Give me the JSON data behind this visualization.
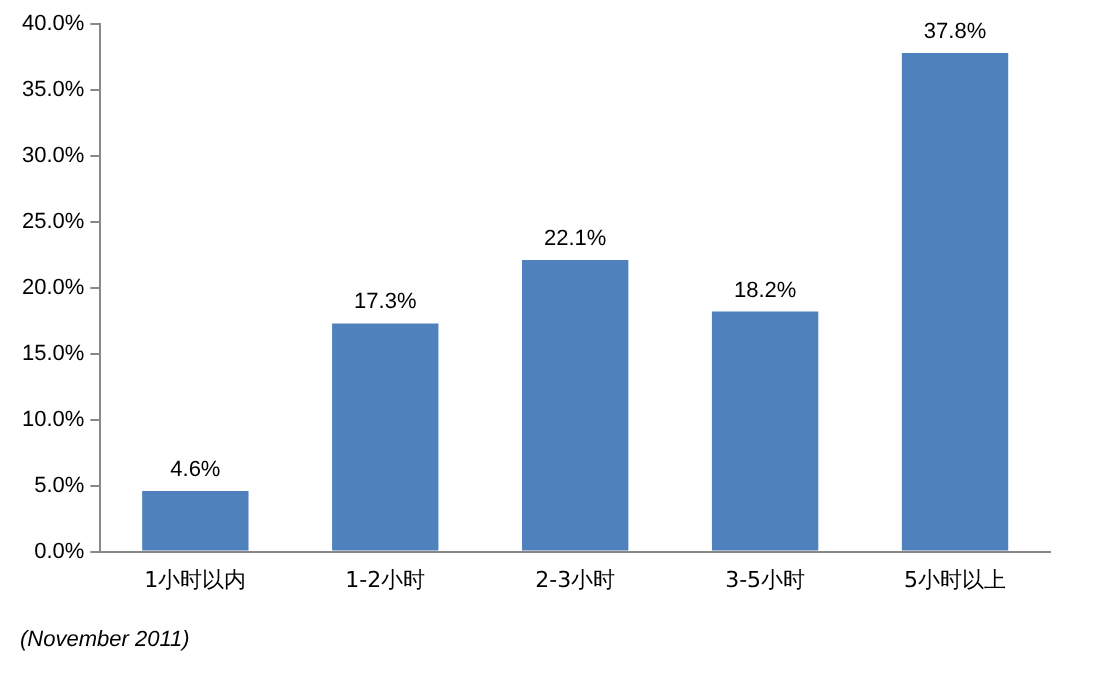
{
  "chart_data": {
    "type": "bar",
    "categories": [
      "1小时以内",
      "1-2小时",
      "2-3小时",
      "3-5小时",
      "5小时以上"
    ],
    "values": [
      4.6,
      17.3,
      22.1,
      18.2,
      37.8
    ],
    "value_labels": [
      "4.6%",
      "17.3%",
      "22.1%",
      "18.2%",
      "37.8%"
    ],
    "color": "#4f81bd",
    "ylim": [
      0,
      40
    ],
    "yticks": [
      {
        "value": 0,
        "label": "0.0%"
      },
      {
        "value": 5,
        "label": "5.0%"
      },
      {
        "value": 10,
        "label": "10.0%"
      },
      {
        "value": 15,
        "label": "15.0%"
      },
      {
        "value": 20,
        "label": "20.0%"
      },
      {
        "value": 25,
        "label": "25.0%"
      },
      {
        "value": 30,
        "label": "30.0%"
      },
      {
        "value": 35,
        "label": "35.0%"
      },
      {
        "value": 40,
        "label": "40.0%"
      }
    ],
    "grid": false,
    "legend": false,
    "annotations": [
      "(November 2011)"
    ]
  }
}
